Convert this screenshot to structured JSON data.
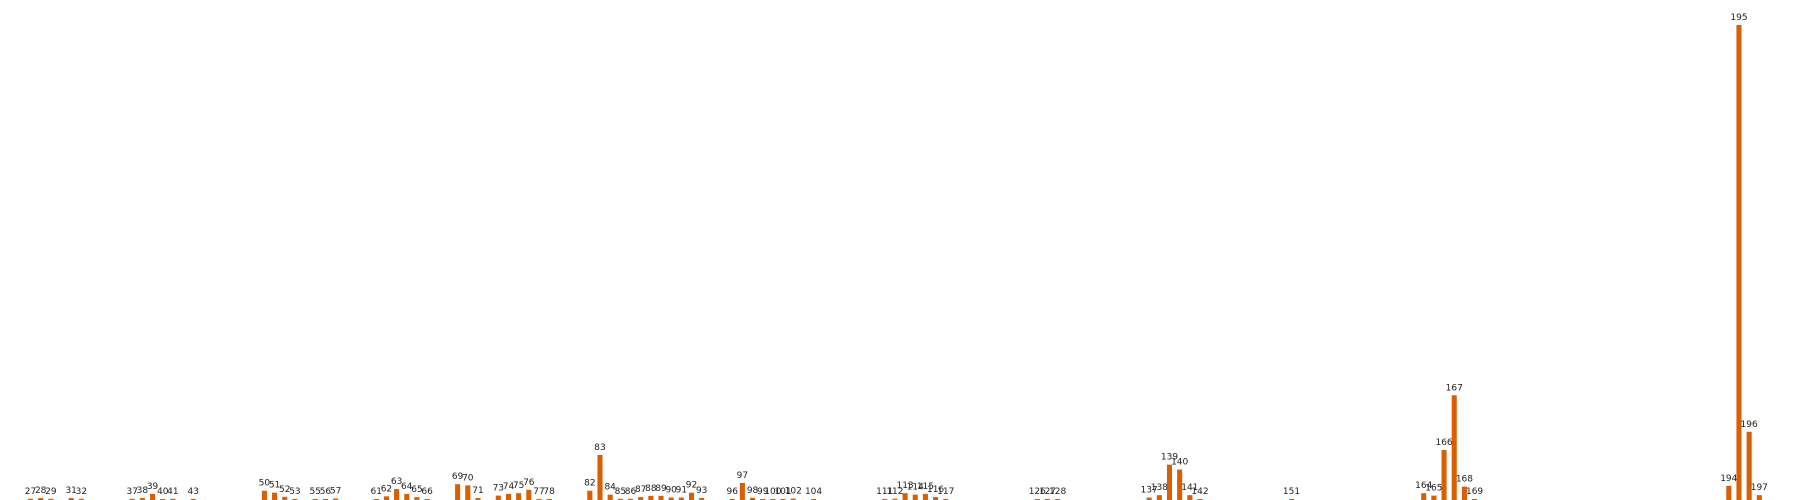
{
  "chart_data": {
    "type": "bar",
    "title": "",
    "xlabel": "",
    "ylabel": "",
    "axes_visible": false,
    "grid": false,
    "bar_color": "#d95f02",
    "xlim": [
      24,
      201
    ],
    "ylim": [
      0,
      195
    ],
    "x": [
      27,
      28,
      29,
      31,
      32,
      37,
      38,
      39,
      40,
      41,
      43,
      50,
      51,
      52,
      53,
      55,
      56,
      57,
      61,
      62,
      63,
      64,
      65,
      66,
      69,
      70,
      71,
      73,
      74,
      75,
      76,
      77,
      78,
      82,
      83,
      84,
      85,
      86,
      87,
      88,
      89,
      90,
      91,
      92,
      93,
      96,
      97,
      98,
      99,
      100,
      101,
      102,
      104,
      111,
      112,
      113,
      114,
      115,
      116,
      117,
      126,
      127,
      128,
      137,
      138,
      139,
      140,
      141,
      142,
      151,
      164,
      165,
      166,
      167,
      168,
      169,
      194,
      195,
      196,
      197
    ],
    "labels": [
      "27",
      "28",
      "29",
      "31",
      "32",
      "37",
      "38",
      "39",
      "40",
      "41",
      "43",
      "50",
      "51",
      "52",
      "53",
      "55",
      "56",
      "57",
      "61",
      "62",
      "63",
      "64",
      "65",
      "66",
      "69",
      "70",
      "71",
      "73",
      "74",
      "75",
      "76",
      "77",
      "78",
      "82",
      "83",
      "84",
      "85",
      "86",
      "87",
      "88",
      "89",
      "90",
      "91",
      "92",
      "93",
      "96",
      "97",
      "98",
      "99",
      "100",
      "101",
      "102",
      "104",
      "111",
      "112",
      "113",
      "114",
      "115",
      "116",
      "117",
      "126",
      "127",
      "128",
      "137",
      "138",
      "139",
      "140",
      "141",
      "142",
      "151",
      "164",
      "165",
      "166",
      "167",
      "168",
      "169",
      "194",
      "195",
      "196",
      "197"
    ],
    "values": [
      0.5,
      0.8,
      0.5,
      0.8,
      0.5,
      0.5,
      0.8,
      2.5,
      0.3,
      0.5,
      0.3,
      3.8,
      3.0,
      1.3,
      0.3,
      0.4,
      0.2,
      0.6,
      0.4,
      1.5,
      4.5,
      2.5,
      1.2,
      0.3,
      6.5,
      6.0,
      0.8,
      1.8,
      2.5,
      2.8,
      4.2,
      0.3,
      0.2,
      3.8,
      18.5,
      2.2,
      0.5,
      0.5,
      1.2,
      1.7,
      1.7,
      1.0,
      1.0,
      3.0,
      0.8,
      0.2,
      7.0,
      0.9,
      0.4,
      0.3,
      0.3,
      0.6,
      0.1,
      0.3,
      0.5,
      2.8,
      2.2,
      2.5,
      1.2,
      0.3,
      0.4,
      0.3,
      0.3,
      1.0,
      2.0,
      14.5,
      12.5,
      2.0,
      0.1,
      0.1,
      2.8,
      1.8,
      20.5,
      43.0,
      5.5,
      0.4,
      5.8,
      195.0,
      28.0,
      2.0
    ]
  }
}
